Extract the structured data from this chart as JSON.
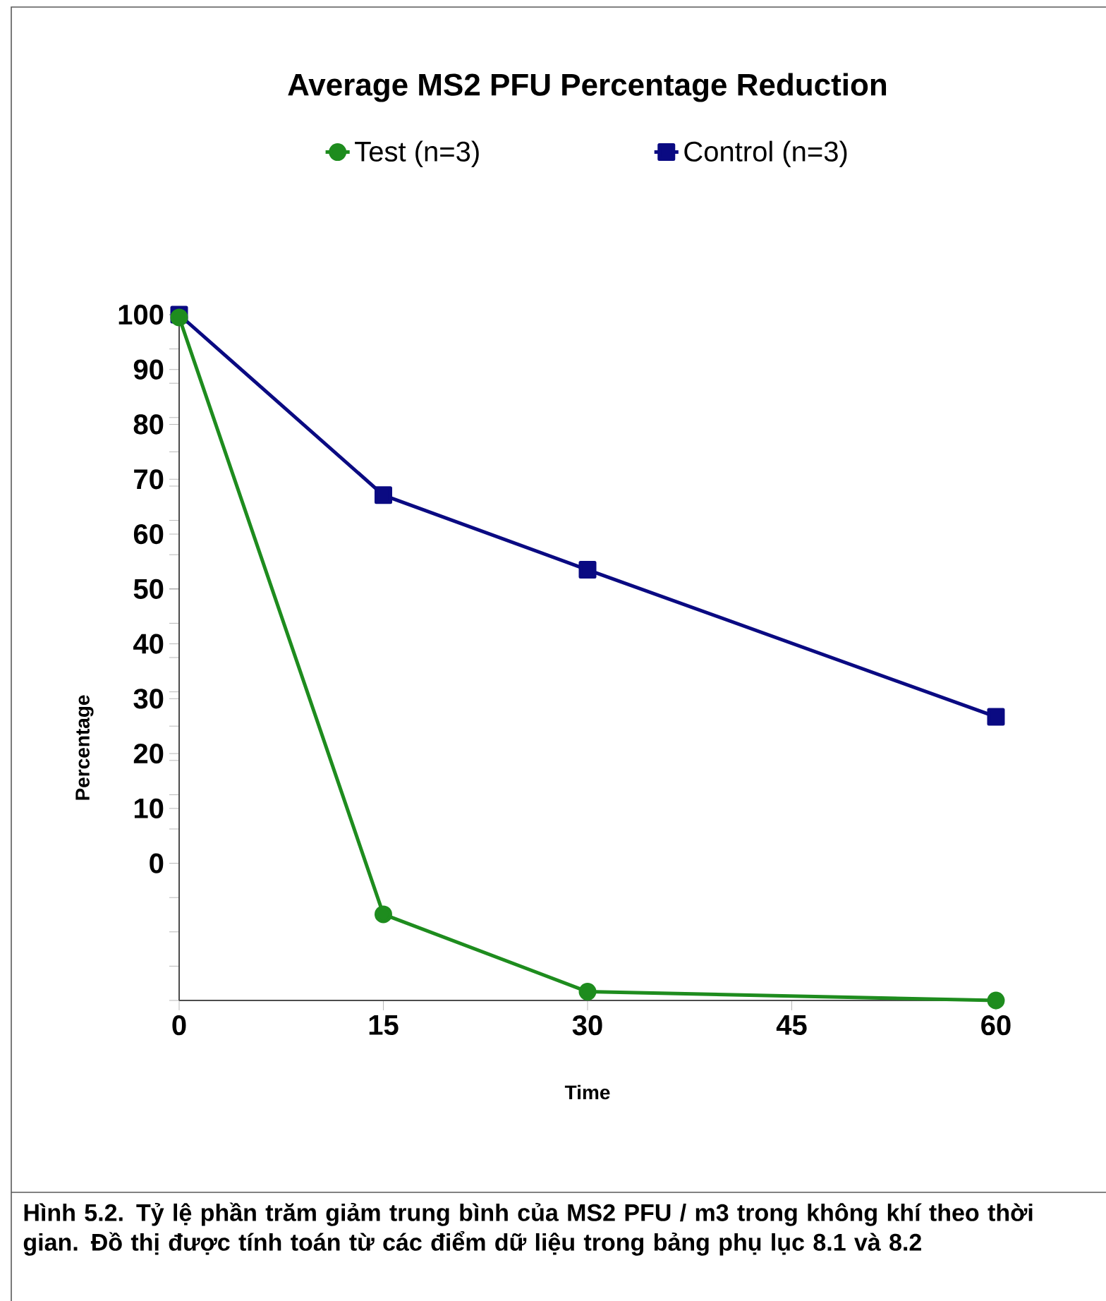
{
  "chart_data": {
    "type": "line",
    "title": "Average MS2 PFU Percentage Reduction",
    "xlabel": "Time",
    "ylabel": "Percentage",
    "x": [
      0,
      15,
      30,
      60
    ],
    "series": [
      {
        "name": "Test (n=3)",
        "color": "#1e8c1e",
        "marker": "circle",
        "values": [
          99.5,
          -9.3,
          -23.4,
          -25
        ]
      },
      {
        "name": "Control (n=3)",
        "color": "#0a0a82",
        "marker": "square",
        "values": [
          100,
          67.1,
          53.5,
          26.7
        ]
      }
    ],
    "xlim": [
      0,
      60
    ],
    "xticks": [
      0,
      15,
      30,
      45,
      60
    ],
    "ylim": [
      -25,
      100
    ],
    "yticks": [
      0,
      10,
      20,
      30,
      40,
      50,
      60,
      70,
      80,
      90,
      100,
      {
        "value": -25,
        "label": null
      },
      {
        "value": -18.75,
        "label": null
      },
      {
        "value": -12.5,
        "label": null
      },
      {
        "value": -6.25,
        "label": null
      },
      {
        "value": 6.25,
        "label": null
      },
      {
        "value": 12.5,
        "label": null
      },
      {
        "value": 18.75,
        "label": null
      },
      {
        "value": 25,
        "label": null
      },
      {
        "value": 31.25,
        "label": null
      },
      {
        "value": 37.5,
        "label": null
      },
      {
        "value": 43.75,
        "label": null
      },
      {
        "value": 50,
        "label": null
      },
      {
        "value": 56.25,
        "label": null
      },
      {
        "value": 62.5,
        "label": null
      },
      {
        "value": 68.75,
        "label": null
      },
      {
        "value": 75,
        "label": null
      },
      {
        "value": 81.25,
        "label": null
      },
      {
        "value": 87.5,
        "label": null
      },
      {
        "value": 93.75,
        "label": null
      },
      {
        "value": 100,
        "label": null
      }
    ],
    "grid": false,
    "legend": "top",
    "line_style": "solid",
    "annotations": [
      "Hình 5.2. Tỷ lệ phần trăm giảm trung bình của MS2 PFU / m3 trong không khí theo thời gian. Đồ thị được tính toán từ các điểm dữ liệu trong bảng phụ lục 8.1 và 8.2"
    ]
  }
}
